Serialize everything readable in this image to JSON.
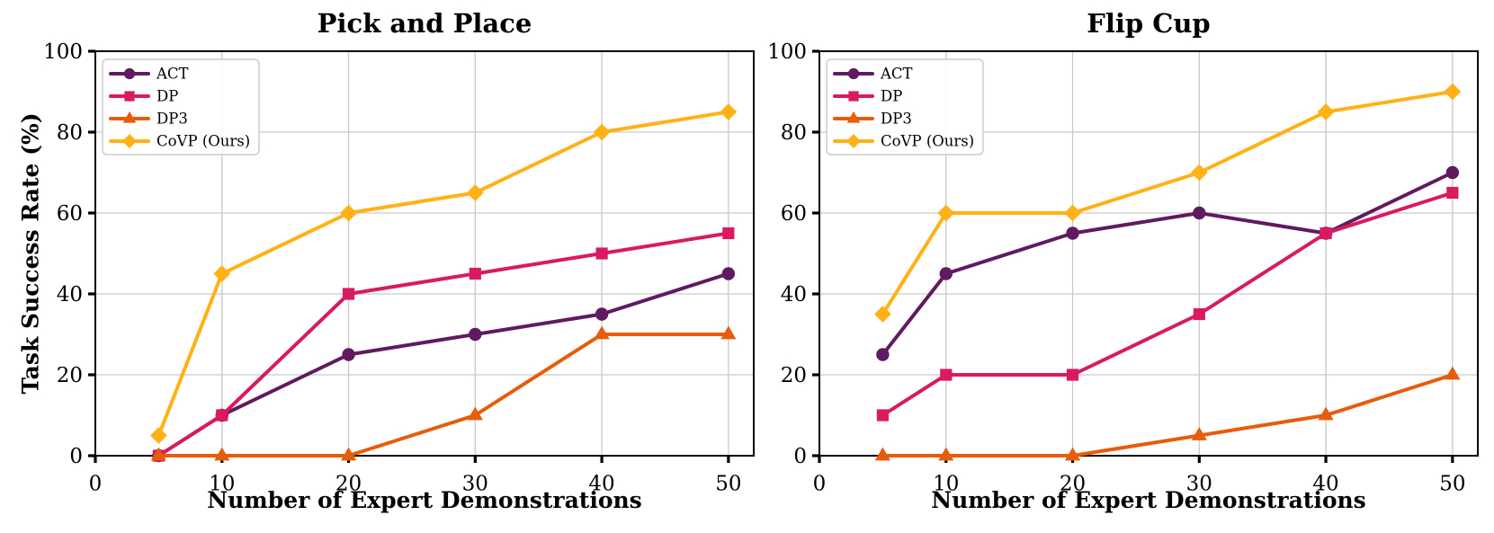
{
  "figure": {
    "background": "#ffffff",
    "grid_color": "#c9c9c9",
    "spine_color": "#000000"
  },
  "chart_data": [
    {
      "type": "line",
      "title": "Pick and Place",
      "xlabel": "Number of Expert Demonstrations",
      "ylabel": "Task Success Rate (%)",
      "x": [
        5,
        10,
        20,
        30,
        40,
        50
      ],
      "xticks": [
        0,
        10,
        20,
        30,
        40,
        50
      ],
      "yticks": [
        0,
        20,
        40,
        60,
        80,
        100
      ],
      "xlim": [
        0,
        52
      ],
      "ylim": [
        0,
        100
      ],
      "grid": true,
      "legend_position": "upper-left",
      "series": [
        {
          "name": "ACT",
          "color": "#5F1A60",
          "marker": "circle",
          "values": [
            0,
            10,
            25,
            30,
            35,
            45
          ]
        },
        {
          "name": "DP",
          "color": "#D91A60",
          "marker": "square",
          "values": [
            0,
            10,
            40,
            45,
            50,
            55
          ]
        },
        {
          "name": "DP3",
          "color": "#E65C0A",
          "marker": "triangle",
          "values": [
            0,
            0,
            0,
            10,
            30,
            30
          ]
        },
        {
          "name": "CoVP (Ours)",
          "color": "#FFB115",
          "marker": "diamond",
          "values": [
            5,
            45,
            60,
            65,
            80,
            85
          ]
        }
      ]
    },
    {
      "type": "line",
      "title": "Flip Cup",
      "xlabel": "Number of Expert Demonstrations",
      "ylabel": "",
      "x": [
        5,
        10,
        20,
        30,
        40,
        50
      ],
      "xticks": [
        0,
        10,
        20,
        30,
        40,
        50
      ],
      "yticks": [
        0,
        20,
        40,
        60,
        80,
        100
      ],
      "xlim": [
        0,
        52
      ],
      "ylim": [
        0,
        100
      ],
      "grid": true,
      "legend_position": "upper-left",
      "series": [
        {
          "name": "ACT",
          "color": "#5F1A60",
          "marker": "circle",
          "values": [
            25,
            45,
            55,
            60,
            55,
            70
          ]
        },
        {
          "name": "DP",
          "color": "#D91A60",
          "marker": "square",
          "values": [
            10,
            20,
            20,
            35,
            55,
            65
          ]
        },
        {
          "name": "DP3",
          "color": "#E65C0A",
          "marker": "triangle",
          "values": [
            0,
            0,
            0,
            5,
            10,
            20
          ]
        },
        {
          "name": "CoVP (Ours)",
          "color": "#FFB115",
          "marker": "diamond",
          "values": [
            35,
            60,
            60,
            70,
            85,
            90
          ]
        }
      ]
    }
  ]
}
